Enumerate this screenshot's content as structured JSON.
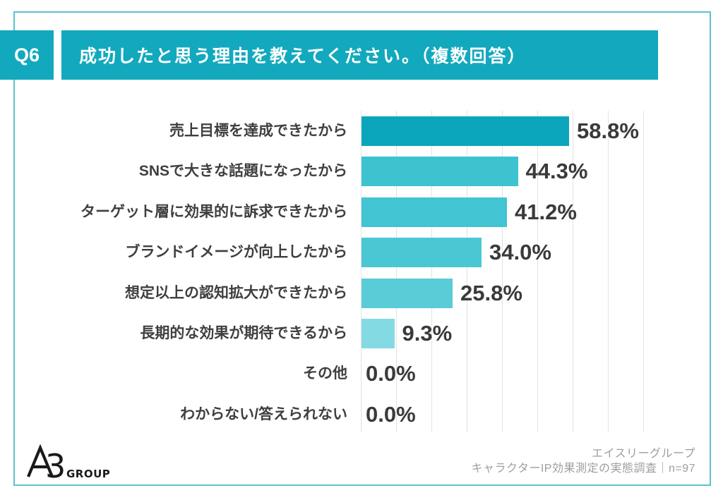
{
  "header": {
    "q_label": "Q6",
    "title": "成功したと思う理由を教えてください。（複数回答）"
  },
  "chart_data": {
    "type": "bar",
    "orientation": "horizontal",
    "title": "成功したと思う理由を教えてください。（複数回答）",
    "categories": [
      "売上目標を達成できたから",
      "SNSで大きな話題になったから",
      "ターゲット層に効果的に訴求できたから",
      "ブランドイメージが向上したから",
      "想定以上の認知拡大ができたから",
      "長期的な効果が期待できるから",
      "その他",
      "わからない/答えられない"
    ],
    "values": [
      58.8,
      44.3,
      41.2,
      34.0,
      25.8,
      9.3,
      0.0,
      0.0
    ],
    "unit": "%",
    "xlim": [
      0,
      80
    ],
    "grid_step": 10,
    "grid": true,
    "legend": false,
    "bar_colors": [
      "#0CA6BC",
      "#3DC2D0",
      "#42C4D2",
      "#4BC7D4",
      "#59CCD8",
      "#83DAE3",
      "#83DAE3",
      "#83DAE3"
    ]
  },
  "footer": {
    "logo_main": "A3",
    "logo_suffix": "GROUP",
    "source_line1": "エイスリーグループ",
    "source_line2": "キャラクターIP効果測定の実態調査｜n=97"
  },
  "colors": {
    "accent": "#12A9BE",
    "border": "#59C2CD",
    "grid": "#E3E3E3",
    "category_text": "#3F3F3F",
    "value_text": "#3A3A3A",
    "footer_text": "#9E9E9E",
    "logo_text": "#1A1A1A"
  }
}
